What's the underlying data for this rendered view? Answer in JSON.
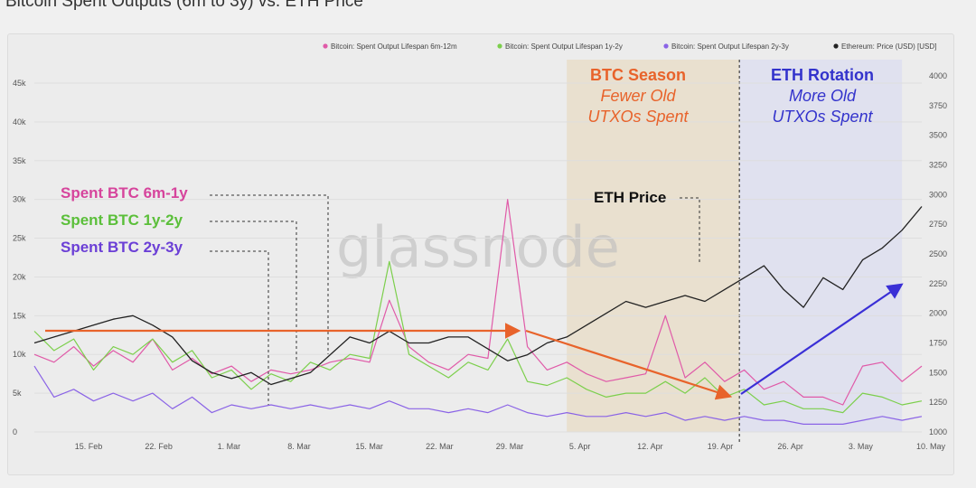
{
  "page_title": "Bitcoin Spent Outputs (6m to 3y) vs. ETH Price",
  "watermark": "glassnode",
  "chart_data": {
    "type": "line",
    "title": "Bitcoin Spent Outputs (6m to 3y) vs. ETH Price",
    "x_labels": [
      "15. Feb",
      "22. Feb",
      "1. Mar",
      "8. Mar",
      "15. Mar",
      "22. Mar",
      "29. Mar",
      "5. Apr",
      "12. Apr",
      "19. Apr",
      "26. Apr",
      "3. May",
      "10. May"
    ],
    "left_axis": {
      "ticks": [
        "0",
        "5k",
        "10k",
        "15k",
        "20k",
        "25k",
        "30k",
        "35k",
        "40k",
        "45k"
      ],
      "ylim": [
        0,
        45000
      ]
    },
    "right_axis": {
      "ticks": [
        "1000",
        "1250",
        "1500",
        "1750",
        "2000",
        "2250",
        "2500",
        "2750",
        "3000",
        "3250",
        "3500",
        "3750",
        "4000"
      ],
      "ylim": [
        1000,
        4000
      ]
    },
    "legend": [
      {
        "name": "Bitcoin: Spent Output Lifespan 6m-12m",
        "color": "#e05aa8"
      },
      {
        "name": "Bitcoin: Spent Output Lifespan 1y-2y",
        "color": "#7ccf4c"
      },
      {
        "name": "Bitcoin: Spent Output Lifespan 2y-3y",
        "color": "#8a63e6"
      },
      {
        "name": "Ethereum: Price (USD) [USD]",
        "color": "#222222"
      }
    ],
    "legend_position": "top-right",
    "series": [
      {
        "name": "Bitcoin: Spent Output Lifespan 6m-12m",
        "axis": "left",
        "color": "#e05aa8",
        "x": [
          0,
          2,
          4,
          6,
          8,
          10,
          12,
          14,
          16,
          18,
          20,
          22,
          24,
          26,
          28,
          30,
          32,
          34,
          36,
          38,
          40,
          42,
          44,
          46,
          48,
          50,
          52,
          54,
          56,
          58,
          60,
          62,
          64,
          66,
          68,
          70,
          72,
          74,
          76,
          78,
          80,
          82,
          84,
          86,
          88,
          90
        ],
        "values": [
          10000,
          9000,
          11000,
          8500,
          10500,
          9000,
          12000,
          8000,
          9500,
          7500,
          8500,
          6500,
          8000,
          7500,
          8000,
          9000,
          9500,
          9000,
          17000,
          11000,
          9000,
          8000,
          10000,
          9500,
          30000,
          11000,
          8000,
          9000,
          7500,
          6500,
          7000,
          7500,
          15000,
          7000,
          9000,
          6500,
          8000,
          5500,
          6500,
          4500,
          4500,
          3500,
          8500,
          9000,
          6500,
          8500
        ]
      },
      {
        "name": "Bitcoin: Spent Output Lifespan 1y-2y",
        "axis": "left",
        "color": "#7ccf4c",
        "x": [
          0,
          2,
          4,
          6,
          8,
          10,
          12,
          14,
          16,
          18,
          20,
          22,
          24,
          26,
          28,
          30,
          32,
          34,
          36,
          38,
          40,
          42,
          44,
          46,
          48,
          50,
          52,
          54,
          56,
          58,
          60,
          62,
          64,
          66,
          68,
          70,
          72,
          74,
          76,
          78,
          80,
          82,
          84,
          86,
          88,
          90
        ],
        "values": [
          13000,
          10500,
          12000,
          8000,
          11000,
          10000,
          12000,
          9000,
          10500,
          7000,
          8000,
          5500,
          7500,
          6500,
          9000,
          8000,
          10000,
          9500,
          22000,
          10000,
          8500,
          7000,
          9000,
          8000,
          12000,
          6500,
          6000,
          7000,
          5500,
          4500,
          5000,
          5000,
          6500,
          5000,
          7000,
          4500,
          5500,
          3500,
          4000,
          3000,
          3000,
          2500,
          5000,
          4500,
          3500,
          4000
        ]
      },
      {
        "name": "Bitcoin: Spent Output Lifespan 2y-3y",
        "axis": "left",
        "color": "#8a63e6",
        "x": [
          0,
          2,
          4,
          6,
          8,
          10,
          12,
          14,
          16,
          18,
          20,
          22,
          24,
          26,
          28,
          30,
          32,
          34,
          36,
          38,
          40,
          42,
          44,
          46,
          48,
          50,
          52,
          54,
          56,
          58,
          60,
          62,
          64,
          66,
          68,
          70,
          72,
          74,
          76,
          78,
          80,
          82,
          84,
          86,
          88,
          90
        ],
        "values": [
          8500,
          4500,
          5500,
          4000,
          5000,
          4000,
          5000,
          3000,
          4500,
          2500,
          3500,
          3000,
          3500,
          3000,
          3500,
          3000,
          3500,
          3000,
          4000,
          3000,
          3000,
          2500,
          3000,
          2500,
          3500,
          2500,
          2000,
          2500,
          2000,
          2000,
          2500,
          2000,
          2500,
          1500,
          2000,
          1500,
          2000,
          1500,
          1500,
          1000,
          1000,
          1000,
          1500,
          2000,
          1500,
          2000
        ]
      },
      {
        "name": "Ethereum: Price (USD) [USD]",
        "axis": "right",
        "color": "#222222",
        "x": [
          0,
          2,
          4,
          6,
          8,
          10,
          12,
          14,
          16,
          18,
          20,
          22,
          24,
          26,
          28,
          30,
          32,
          34,
          36,
          38,
          40,
          42,
          44,
          46,
          48,
          50,
          52,
          54,
          56,
          58,
          60,
          62,
          64,
          66,
          68,
          70,
          72,
          74,
          76,
          78,
          80,
          82,
          84,
          86,
          88,
          90
        ],
        "values": [
          1750,
          1800,
          1850,
          1900,
          1950,
          1980,
          1900,
          1800,
          1600,
          1500,
          1450,
          1500,
          1400,
          1450,
          1500,
          1650,
          1800,
          1750,
          1850,
          1750,
          1750,
          1800,
          1800,
          1700,
          1600,
          1650,
          1750,
          1800,
          1900,
          2000,
          2100,
          2050,
          2100,
          2150,
          2100,
          2200,
          2300,
          2400,
          2200,
          2050,
          2300,
          2200,
          2450,
          2550,
          2700,
          2900
        ]
      }
    ],
    "annotations": {
      "spent_6m": "Spent BTC 6m-1y",
      "spent_1y": "Spent BTC 1y-2y",
      "spent_2y": "Spent BTC 2y-3y",
      "eth_price": "ETH Price",
      "btc_season_title": "BTC Season",
      "btc_season_line1": "Fewer Old",
      "btc_season_line2": "UTXOs Spent",
      "eth_rotation_title": "ETH Rotation",
      "eth_rotation_line1": "More Old",
      "eth_rotation_line2": "UTXOs Spent"
    },
    "colors": {
      "btc_season_text": "#e8632b",
      "eth_rotation_text": "#3333cc",
      "arrow_orange": "#e8632b",
      "arrow_blue": "#3a2fd6",
      "band_btc": "#e8dcc6",
      "band_eth": "#dfe0ef"
    }
  }
}
